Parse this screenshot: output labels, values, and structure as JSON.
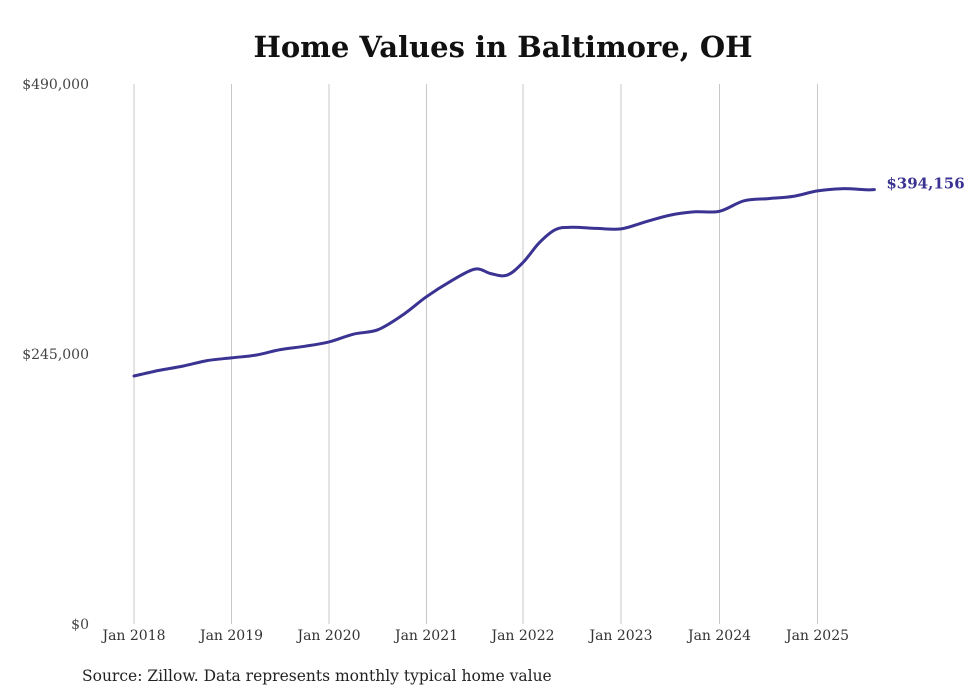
{
  "chart_data": {
    "type": "line",
    "title": "Home Values in Baltimore, OH",
    "xlabel": "",
    "ylabel": "",
    "ylim": [
      0,
      490000
    ],
    "y_ticks": [
      {
        "value": 0,
        "label": "$0"
      },
      {
        "value": 245000,
        "label": "$245,000"
      },
      {
        "value": 490000,
        "label": "$490,000"
      }
    ],
    "x_ticks": [
      "Jan 2018",
      "Jan 2019",
      "Jan 2020",
      "Jan 2021",
      "Jan 2022",
      "Jan 2023",
      "Jan 2024",
      "Jan 2025"
    ],
    "grid": "vertical",
    "line_color": "#3a3392",
    "end_label": "$394,156",
    "series": [
      {
        "values": [
          {
            "x": "2018-01",
            "y": 225000
          },
          {
            "x": "2018-04",
            "y": 230000
          },
          {
            "x": "2018-07",
            "y": 234000
          },
          {
            "x": "2018-10",
            "y": 239000
          },
          {
            "x": "2019-01",
            "y": 241500
          },
          {
            "x": "2019-04",
            "y": 244000
          },
          {
            "x": "2019-07",
            "y": 249000
          },
          {
            "x": "2019-10",
            "y": 252000
          },
          {
            "x": "2020-01",
            "y": 256000
          },
          {
            "x": "2020-04",
            "y": 263000
          },
          {
            "x": "2020-07",
            "y": 267000
          },
          {
            "x": "2020-10",
            "y": 280000
          },
          {
            "x": "2021-01",
            "y": 297000
          },
          {
            "x": "2021-04",
            "y": 311000
          },
          {
            "x": "2021-07",
            "y": 322000
          },
          {
            "x": "2021-09",
            "y": 318000
          },
          {
            "x": "2021-11",
            "y": 316500
          },
          {
            "x": "2022-01",
            "y": 328000
          },
          {
            "x": "2022-03",
            "y": 346000
          },
          {
            "x": "2022-05",
            "y": 358000
          },
          {
            "x": "2022-07",
            "y": 360000
          },
          {
            "x": "2022-10",
            "y": 359000
          },
          {
            "x": "2023-01",
            "y": 358500
          },
          {
            "x": "2023-04",
            "y": 365000
          },
          {
            "x": "2023-07",
            "y": 371000
          },
          {
            "x": "2023-10",
            "y": 374000
          },
          {
            "x": "2024-01",
            "y": 374500
          },
          {
            "x": "2024-04",
            "y": 384000
          },
          {
            "x": "2024-07",
            "y": 386000
          },
          {
            "x": "2024-10",
            "y": 388000
          },
          {
            "x": "2025-01",
            "y": 393000
          },
          {
            "x": "2025-04",
            "y": 395000
          },
          {
            "x": "2025-07",
            "y": 394000
          },
          {
            "x": "2025-08",
            "y": 394156
          }
        ]
      }
    ]
  },
  "footer": {
    "source": "Source: Zillow. Data represents monthly typical home value"
  }
}
